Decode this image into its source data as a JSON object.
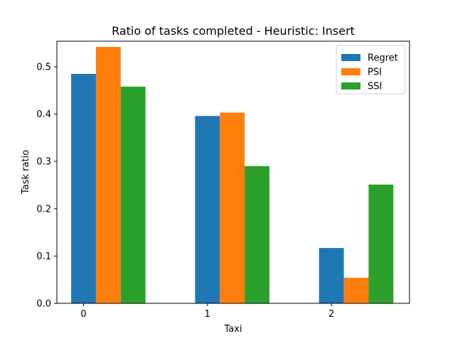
{
  "chart_data": {
    "type": "bar",
    "title": "Ratio of tasks completed - Heuristic: Insert",
    "xlabel": "Taxi",
    "ylabel": "Task ratio",
    "categories": [
      "0",
      "1",
      "2"
    ],
    "series": [
      {
        "name": "Regret",
        "color": "#1f77b4",
        "values": [
          0.485,
          0.396,
          0.117
        ]
      },
      {
        "name": "PSI",
        "color": "#ff7f0e",
        "values": [
          0.542,
          0.403,
          0.054
        ]
      },
      {
        "name": "SSI",
        "color": "#2ca02c",
        "values": [
          0.458,
          0.29,
          0.251
        ]
      }
    ],
    "ylim": [
      0,
      0.554
    ],
    "yticks": [
      "0.0",
      "0.1",
      "0.2",
      "0.3",
      "0.4",
      "0.5"
    ],
    "grid": false,
    "legend_position": "top-right"
  }
}
